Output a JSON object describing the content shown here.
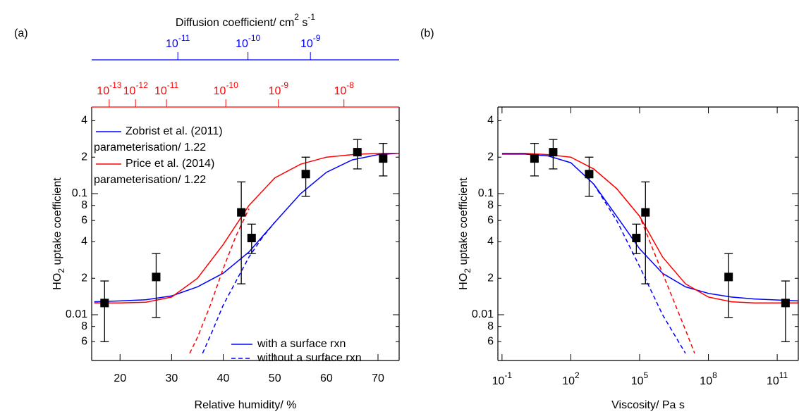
{
  "chart_data": [
    {
      "type": "scatter",
      "panel_label": "(a)",
      "x_label": "Relative humidity/ %",
      "y_label": [
        "HO",
        "2",
        " uptake coefficient"
      ],
      "xscale": "linear",
      "yscale": "log",
      "xlim": [
        14.5,
        74.1
      ],
      "ylim": [
        0.00419,
        0.519
      ],
      "xticks": [
        20,
        30,
        40,
        50,
        60,
        70
      ],
      "yticks": [
        {
          "value": 0.4,
          "label": "4"
        },
        {
          "value": 0.2,
          "label": "2"
        },
        0.1,
        {
          "value": 0.08,
          "label": "8"
        },
        {
          "value": 0.06,
          "label": "6"
        },
        {
          "value": 0.04,
          "label": "4"
        },
        {
          "value": 0.02,
          "label": "2"
        },
        0.01,
        {
          "value": 0.008,
          "label": "8"
        },
        {
          "value": 0.006,
          "label": "6"
        }
      ],
      "points": {
        "color": "#000000",
        "x": [
          17,
          27,
          43.5,
          45.5,
          56,
          66,
          71
        ],
        "y": [
          0.0125,
          0.0205,
          0.07,
          0.043,
          0.145,
          0.22,
          0.195
        ],
        "y_lower": [
          0.006,
          0.0095,
          0.018,
          0.032,
          0.095,
          0.16,
          0.14
        ],
        "y_upper": [
          0.019,
          0.032,
          0.125,
          0.056,
          0.2,
          0.28,
          0.26
        ]
      },
      "curves": [
        {
          "color": "#0000ff",
          "dashed": false,
          "x": [
            15,
            20,
            25,
            30,
            35,
            40,
            45,
            50,
            55,
            60,
            65,
            70,
            74
          ],
          "values": [
            0.0128,
            0.013,
            0.0133,
            0.0143,
            0.017,
            0.022,
            0.033,
            0.058,
            0.1,
            0.15,
            0.19,
            0.21,
            0.215
          ]
        },
        {
          "color": "#ff0000",
          "dashed": false,
          "x": [
            15,
            20,
            25,
            30,
            35,
            40,
            45,
            50,
            55,
            60,
            65,
            70,
            74
          ],
          "values": [
            0.0125,
            0.0125,
            0.0127,
            0.014,
            0.02,
            0.038,
            0.08,
            0.135,
            0.175,
            0.2,
            0.21,
            0.215,
            0.215
          ]
        },
        {
          "color": "#ff0000",
          "dashed": true,
          "x": [
            33.5,
            35,
            37.5,
            40,
            42.5,
            45
          ],
          "values": [
            0.0048,
            0.0065,
            0.012,
            0.024,
            0.045,
            0.075
          ]
        },
        {
          "color": "#0000ff",
          "dashed": true,
          "x": [
            36,
            38,
            40,
            42.5,
            45,
            47.5,
            50
          ],
          "values": [
            0.0048,
            0.0075,
            0.012,
            0.019,
            0.03,
            0.043,
            0.058
          ]
        }
      ],
      "legend": [
        {
          "label": [
            "Zobrist et al. (2011)",
            "parameterisation/ 1.22"
          ],
          "color": "#0000ff"
        },
        {
          "label": [
            "Price et al. (2014)",
            "parameterisation/ 1.22"
          ],
          "color": "#ff0000"
        }
      ],
      "line_style_legend": [
        {
          "label": "with a surface rxn",
          "dashed": false,
          "color": "#0000ff"
        },
        {
          "label": "without a surface rxn",
          "dashed": true,
          "color": "#0000ff"
        }
      ],
      "top_axes": [
        {
          "color": "#ff0000",
          "ticks": [
            {
              "value": 1e-13,
              "label": [
                "10",
                "-13"
              ],
              "rh": 17.9
            },
            {
              "value": 1e-12,
              "label": [
                "10",
                "-12"
              ],
              "rh": 23.0
            },
            {
              "value": 1e-11,
              "label": [
                "10",
                "-11"
              ],
              "rh": 29.0
            },
            {
              "value": 1e-10,
              "label": [
                "10",
                "-10"
              ],
              "rh": 40.5
            },
            {
              "value": 1e-09,
              "label": [
                "10",
                "-9"
              ],
              "rh": 50.7
            },
            {
              "value": 1e-08,
              "label": [
                "10",
                "-8"
              ],
              "rh": 63.4
            }
          ]
        },
        {
          "color": "#0000ff",
          "title": [
            "Diffusion coefficient/ cm",
            "2",
            " s",
            "-1"
          ],
          "ticks": [
            {
              "value": 1e-11,
              "label": [
                "10",
                "-11"
              ],
              "rh": 31.2
            },
            {
              "value": 1e-10,
              "label": [
                "10",
                "-10"
              ],
              "rh": 44.8
            },
            {
              "value": 1e-09,
              "label": [
                "10",
                "-9"
              ],
              "rh": 56.9
            }
          ]
        }
      ]
    },
    {
      "type": "scatter",
      "panel_label": "(b)",
      "x_label": "Viscosity/ Pa s",
      "y_label": [
        "HO",
        "2",
        " uptake coefficient"
      ],
      "xscale": "log",
      "yscale": "log",
      "xlim": [
        0.066,
        830000000000
      ],
      "ylim": [
        0.00419,
        0.519
      ],
      "xticks": [
        {
          "value": 0.1,
          "label": [
            "10",
            "-1"
          ]
        },
        {
          "value": 100,
          "label": [
            "10",
            "2"
          ]
        },
        {
          "value": 100000,
          "label": [
            "10",
            "5"
          ]
        },
        {
          "value": 100000000,
          "label": [
            "10",
            "8"
          ]
        },
        {
          "value": 100000000000,
          "label": [
            "10",
            "11"
          ]
        }
      ],
      "yticks": [
        {
          "value": 0.4,
          "label": "4"
        },
        {
          "value": 0.2,
          "label": "2"
        },
        0.1,
        {
          "value": 0.08,
          "label": "8"
        },
        {
          "value": 0.06,
          "label": "6"
        },
        {
          "value": 0.04,
          "label": "4"
        },
        {
          "value": 0.02,
          "label": "2"
        },
        0.01,
        {
          "value": 0.008,
          "label": "8"
        },
        {
          "value": 0.006,
          "label": "6"
        }
      ],
      "points": {
        "color": "#000000",
        "x": [
          2.6,
          17,
          630,
          72000,
          180000,
          760000000,
          230000000000
        ],
        "y": [
          0.195,
          0.22,
          0.145,
          0.043,
          0.07,
          0.0205,
          0.0125
        ],
        "y_lower": [
          0.14,
          0.16,
          0.095,
          0.032,
          0.018,
          0.0095,
          0.006
        ],
        "y_upper": [
          0.26,
          0.28,
          0.2,
          0.056,
          0.125,
          0.032,
          0.019
        ]
      },
      "curves": [
        {
          "color": "#0000ff",
          "dashed": false,
          "x": [
            0.1,
            1,
            10,
            100,
            1000,
            10000,
            100000,
            1000000,
            10000000,
            100000000,
            1000000000,
            10000000000,
            800000000000
          ],
          "values": [
            0.212,
            0.212,
            0.205,
            0.18,
            0.12,
            0.065,
            0.035,
            0.022,
            0.017,
            0.015,
            0.014,
            0.0135,
            0.013
          ]
        },
        {
          "color": "#ff0000",
          "dashed": false,
          "x": [
            0.1,
            1,
            10,
            100,
            1000,
            10000,
            100000,
            1000000,
            10000000,
            100000000,
            1000000000,
            10000000000,
            800000000000
          ],
          "values": [
            0.215,
            0.215,
            0.21,
            0.2,
            0.16,
            0.11,
            0.065,
            0.03,
            0.018,
            0.014,
            0.0128,
            0.0125,
            0.0125
          ]
        },
        {
          "color": "#ff0000",
          "dashed": true,
          "x": [
            1000,
            10000,
            100000,
            1000000,
            10000000,
            25000000
          ],
          "values": [
            0.16,
            0.11,
            0.065,
            0.022,
            0.0075,
            0.0048
          ]
        },
        {
          "color": "#0000ff",
          "dashed": true,
          "x": [
            1000,
            10000,
            100000,
            1000000,
            10000000
          ],
          "values": [
            0.12,
            0.06,
            0.025,
            0.01,
            0.0048
          ]
        }
      ]
    }
  ]
}
